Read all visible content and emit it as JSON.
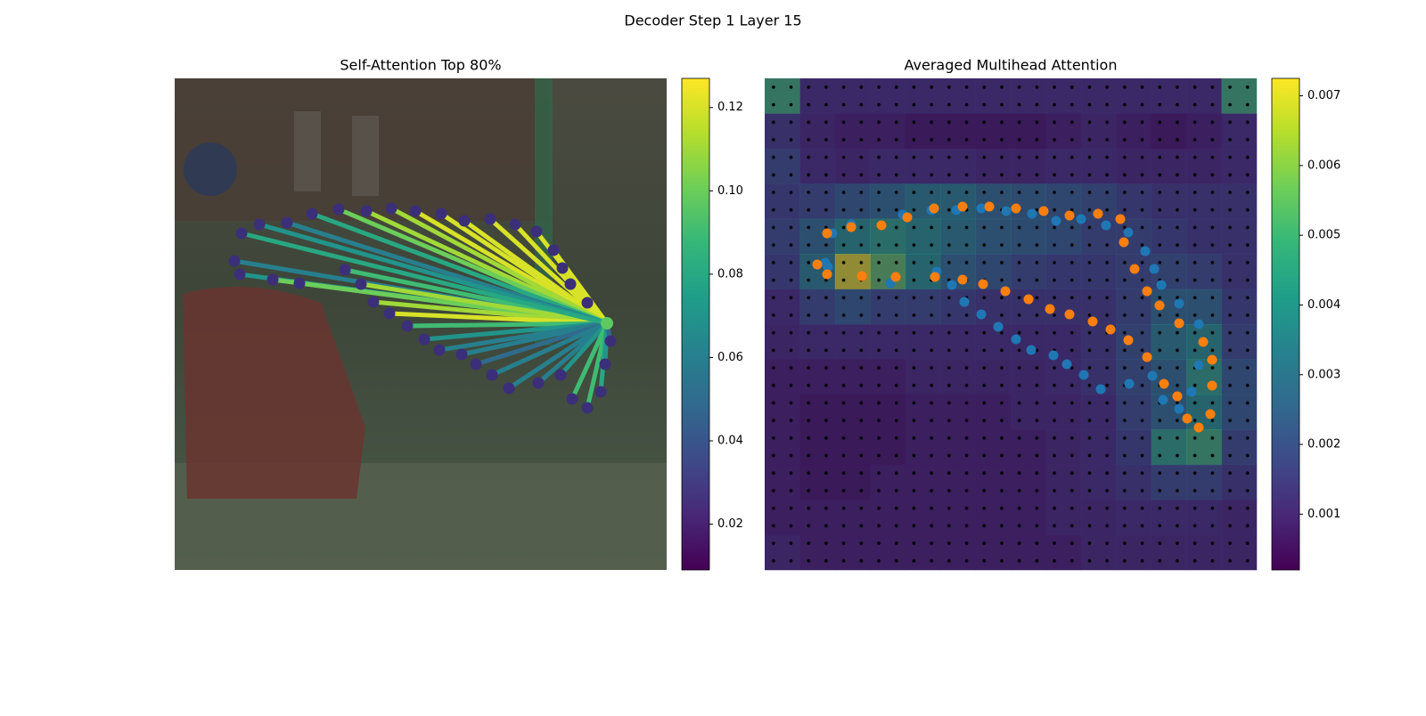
{
  "title": "Decoder Step 1 Layer 15",
  "chart_data": [
    {
      "type": "attention-lines",
      "title": "Self-Attention Top 80%",
      "xlim": [
        0,
        552
      ],
      "ylim": [
        552,
        0
      ],
      "query": {
        "x": 485,
        "y": 275,
        "color": "#5ec962"
      },
      "point_color": "#3b2f7a",
      "x": [
        67,
        73,
        110,
        140,
        191,
        209,
        223,
        241,
        261,
        280,
        297,
        322,
        338,
        356,
        375,
        408,
        433,
        446,
        463,
        478,
        483,
        489,
        463,
        444,
        435,
        425,
        406,
        382,
        354,
        325,
        299,
        270,
        243,
        215,
        184,
        154,
        126,
        95,
        75
      ],
      "y": [
        205,
        220,
        226,
        230,
        215,
        231,
        251,
        264,
        278,
        293,
        305,
        310,
        321,
        333,
        348,
        342,
        333,
        360,
        370,
        352,
        321,
        295,
        252,
        231,
        213,
        193,
        172,
        164,
        158,
        160,
        152,
        149,
        146,
        149,
        147,
        152,
        162,
        164,
        174
      ],
      "values": [
        0.06,
        0.07,
        0.1,
        0.1,
        0.09,
        0.11,
        0.11,
        0.12,
        0.09,
        0.07,
        0.06,
        0.06,
        0.05,
        0.06,
        0.06,
        0.06,
        0.07,
        0.09,
        0.09,
        0.08,
        0.07,
        0.05,
        0.12,
        0.12,
        0.12,
        0.12,
        0.12,
        0.12,
        0.12,
        0.12,
        0.12,
        0.12,
        0.11,
        0.11,
        0.1,
        0.08,
        0.06,
        0.07,
        0.08
      ],
      "colorbar": {
        "clim": [
          0.009,
          0.127
        ],
        "ticks": [
          0.02,
          0.04,
          0.06,
          0.08,
          {
            "value": 0.1,
            "label": "0.10"
          },
          0.12
        ]
      }
    },
    {
      "type": "heatmap",
      "title": "Averaged Multihead Attention",
      "xlim": [
        0,
        552
      ],
      "ylim": [
        552,
        0
      ],
      "z": [
        [
          0.005,
          0.0012,
          0.0012,
          0.0012,
          0.0012,
          0.0012,
          0.0012,
          0.0012,
          0.0012,
          0.0012,
          0.0012,
          0.0012,
          0.0012,
          0.005
        ],
        [
          0.0015,
          0.001,
          0.0008,
          0.0008,
          0.0006,
          0.0006,
          0.0006,
          0.0006,
          0.0008,
          0.001,
          0.0008,
          0.0006,
          0.0008,
          0.0012
        ],
        [
          0.002,
          0.0012,
          0.001,
          0.0012,
          0.0012,
          0.0012,
          0.001,
          0.001,
          0.0012,
          0.0012,
          0.001,
          0.001,
          0.001,
          0.0012
        ],
        [
          0.0018,
          0.002,
          0.0025,
          0.003,
          0.0035,
          0.0035,
          0.003,
          0.0028,
          0.0025,
          0.0022,
          0.0018,
          0.0015,
          0.0015,
          0.0015
        ],
        [
          0.002,
          0.003,
          0.004,
          0.0045,
          0.004,
          0.0035,
          0.003,
          0.0028,
          0.0025,
          0.002,
          0.002,
          0.0018,
          0.0015,
          0.0015
        ],
        [
          0.0018,
          0.0035,
          0.007,
          0.0055,
          0.004,
          0.003,
          0.0025,
          0.002,
          0.0018,
          0.0018,
          0.002,
          0.0022,
          0.002,
          0.0015
        ],
        [
          0.0012,
          0.002,
          0.0025,
          0.002,
          0.002,
          0.0018,
          0.0015,
          0.0015,
          0.0015,
          0.0015,
          0.002,
          0.003,
          0.003,
          0.0018
        ],
        [
          0.001,
          0.0012,
          0.0012,
          0.0012,
          0.0012,
          0.0012,
          0.0012,
          0.0012,
          0.0012,
          0.0015,
          0.0022,
          0.0035,
          0.004,
          0.002
        ],
        [
          0.0008,
          0.0008,
          0.0008,
          0.0008,
          0.001,
          0.001,
          0.001,
          0.001,
          0.0012,
          0.0015,
          0.0022,
          0.003,
          0.0045,
          0.0025
        ],
        [
          0.0008,
          0.0006,
          0.0006,
          0.0006,
          0.0008,
          0.0008,
          0.0008,
          0.001,
          0.001,
          0.0012,
          0.002,
          0.003,
          0.004,
          0.0025
        ],
        [
          0.0008,
          0.0006,
          0.0006,
          0.0006,
          0.0008,
          0.0008,
          0.0008,
          0.0008,
          0.001,
          0.0012,
          0.0018,
          0.0045,
          0.005,
          0.002
        ],
        [
          0.0008,
          0.0006,
          0.0006,
          0.0008,
          0.0008,
          0.0008,
          0.0008,
          0.0008,
          0.001,
          0.0012,
          0.0015,
          0.002,
          0.002,
          0.0015
        ],
        [
          0.0008,
          0.0008,
          0.0008,
          0.0008,
          0.0008,
          0.0008,
          0.0008,
          0.0008,
          0.001,
          0.001,
          0.0012,
          0.0012,
          0.0012,
          0.001
        ],
        [
          0.001,
          0.0008,
          0.0008,
          0.0008,
          0.0008,
          0.0008,
          0.0008,
          0.0008,
          0.0008,
          0.001,
          0.001,
          0.001,
          0.001,
          0.001
        ]
      ],
      "series": [
        {
          "color": "#1f77b4",
          "x": [
            68,
            76,
            97,
            155,
            187,
            215,
            243,
            271,
            300,
            327,
            355,
            383,
            408,
            427,
            437,
            445,
            465,
            487,
            487,
            479,
            465,
            447,
            435,
            409,
            377,
            358,
            339,
            324,
            299,
            282,
            262,
            243,
            224,
            210,
            193,
            141,
            71
          ],
          "y": [
            207,
            174,
            164,
            153,
            148,
            148,
            146,
            149,
            152,
            160,
            158,
            165,
            173,
            194,
            214,
            232,
            253,
            276,
            322,
            352,
            371,
            361,
            334,
            343,
            349,
            333,
            321,
            311,
            305,
            293,
            279,
            265,
            251,
            232,
            217,
            230,
            212
          ]
        },
        {
          "color": "#ff7f0e",
          "x": [
            59,
            70,
            70,
            97,
            131,
            160,
            190,
            222,
            252,
            282,
            313,
            342,
            374,
            399,
            403,
            415,
            429,
            443,
            465,
            492,
            502,
            502,
            500,
            487,
            474,
            463,
            448,
            429,
            408,
            388,
            368,
            342,
            320,
            296,
            270,
            245,
            222,
            191,
            147,
            109
          ],
          "y": [
            209,
            220,
            174,
            167,
            165,
            156,
            146,
            144,
            144,
            146,
            149,
            154,
            152,
            158,
            184,
            214,
            239,
            255,
            275,
            296,
            316,
            345,
            377,
            392,
            382,
            357,
            343,
            313,
            294,
            282,
            273,
            265,
            259,
            248,
            239,
            231,
            226,
            223,
            223,
            222
          ]
        }
      ],
      "colorbar": {
        "clim": [
          0.0002,
          0.00725
        ],
        "ticks": [
          0.001,
          0.002,
          0.003,
          0.004,
          0.005,
          0.006,
          0.007
        ]
      }
    }
  ]
}
